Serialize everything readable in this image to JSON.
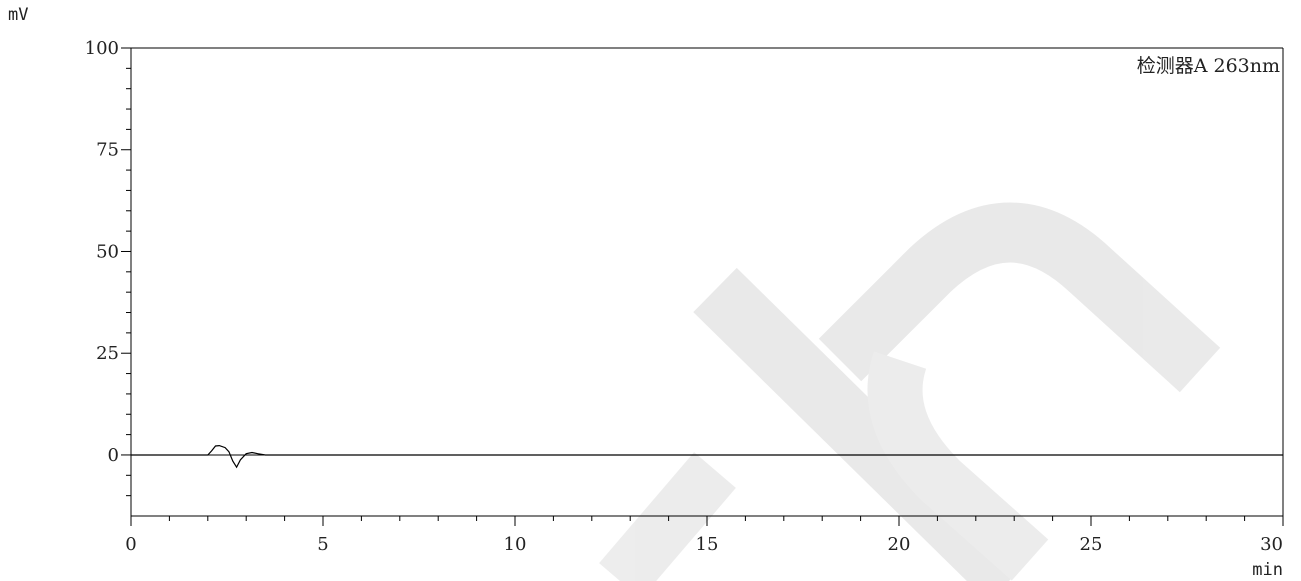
{
  "chart_data": {
    "type": "line",
    "y_unit": "mV",
    "x_unit": "min",
    "annotation": "检测器A 263nm",
    "xlim": [
      0,
      30
    ],
    "ylim": [
      -15,
      100
    ],
    "x_ticks": [
      "0",
      "5",
      "10",
      "15",
      "20",
      "25",
      "30"
    ],
    "y_ticks": [
      "0",
      "25",
      "50",
      "75",
      "100"
    ],
    "grid": false,
    "series": [
      {
        "color": "#000000",
        "x": [
          0,
          2.0,
          2.1,
          2.2,
          2.3,
          2.45,
          2.55,
          2.65,
          2.75,
          2.85,
          3.0,
          3.15,
          3.3,
          3.5,
          5,
          10,
          15,
          20,
          25,
          30
        ],
        "y": [
          0,
          0,
          1.0,
          2.2,
          2.3,
          1.8,
          0.8,
          -1.5,
          -3.0,
          -1.2,
          0.3,
          0.6,
          0.3,
          0,
          0,
          0,
          0,
          0,
          0,
          0
        ]
      }
    ]
  }
}
